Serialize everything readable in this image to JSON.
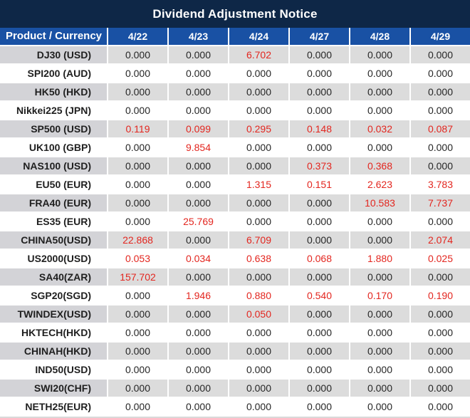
{
  "title": "Dividend Adjustment Notice",
  "colors": {
    "title_bg": "#0e2747",
    "header_bg": "#1951a4",
    "stripe_bg": "#dcdcdc",
    "stripe_product_bg": "#d3d3d7",
    "red": "#e3261f"
  },
  "table": {
    "product_header": "Product / Currency",
    "date_headers": [
      "4/22",
      "4/23",
      "4/24",
      "4/27",
      "4/28",
      "4/29"
    ],
    "rows": [
      {
        "product": "DJ30 (USD)",
        "values": [
          "0.000",
          "0.000",
          "6.702",
          "0.000",
          "0.000",
          "0.000"
        ],
        "red": [
          false,
          false,
          true,
          false,
          false,
          false
        ]
      },
      {
        "product": "SPI200 (AUD)",
        "values": [
          "0.000",
          "0.000",
          "0.000",
          "0.000",
          "0.000",
          "0.000"
        ],
        "red": [
          false,
          false,
          false,
          false,
          false,
          false
        ]
      },
      {
        "product": "HK50 (HKD)",
        "values": [
          "0.000",
          "0.000",
          "0.000",
          "0.000",
          "0.000",
          "0.000"
        ],
        "red": [
          false,
          false,
          false,
          false,
          false,
          false
        ]
      },
      {
        "product": "Nikkei225 (JPN)",
        "values": [
          "0.000",
          "0.000",
          "0.000",
          "0.000",
          "0.000",
          "0.000"
        ],
        "red": [
          false,
          false,
          false,
          false,
          false,
          false
        ]
      },
      {
        "product": "SP500 (USD)",
        "values": [
          "0.119",
          "0.099",
          "0.295",
          "0.148",
          "0.032",
          "0.087"
        ],
        "red": [
          true,
          true,
          true,
          true,
          true,
          true
        ]
      },
      {
        "product": "UK100 (GBP)",
        "values": [
          "0.000",
          "9.854",
          "0.000",
          "0.000",
          "0.000",
          "0.000"
        ],
        "red": [
          false,
          true,
          false,
          false,
          false,
          false
        ]
      },
      {
        "product": "NAS100 (USD)",
        "values": [
          "0.000",
          "0.000",
          "0.000",
          "0.373",
          "0.368",
          "0.000"
        ],
        "red": [
          false,
          false,
          false,
          true,
          true,
          false
        ]
      },
      {
        "product": "EU50 (EUR)",
        "values": [
          "0.000",
          "0.000",
          "1.315",
          "0.151",
          "2.623",
          "3.783"
        ],
        "red": [
          false,
          false,
          true,
          true,
          true,
          true
        ]
      },
      {
        "product": "FRA40 (EUR)",
        "values": [
          "0.000",
          "0.000",
          "0.000",
          "0.000",
          "10.583",
          "7.737"
        ],
        "red": [
          false,
          false,
          false,
          false,
          true,
          true
        ]
      },
      {
        "product": "ES35 (EUR)",
        "values": [
          "0.000",
          "25.769",
          "0.000",
          "0.000",
          "0.000",
          "0.000"
        ],
        "red": [
          false,
          true,
          false,
          false,
          false,
          false
        ]
      },
      {
        "product": "CHINA50(USD)",
        "values": [
          "22.868",
          "0.000",
          "6.709",
          "0.000",
          "0.000",
          "2.074"
        ],
        "red": [
          true,
          false,
          true,
          false,
          false,
          true
        ]
      },
      {
        "product": "US2000(USD)",
        "values": [
          "0.053",
          "0.034",
          "0.638",
          "0.068",
          "1.880",
          "0.025"
        ],
        "red": [
          true,
          true,
          true,
          true,
          true,
          true
        ]
      },
      {
        "product": "SA40(ZAR)",
        "values": [
          "157.702",
          "0.000",
          "0.000",
          "0.000",
          "0.000",
          "0.000"
        ],
        "red": [
          true,
          false,
          false,
          false,
          false,
          false
        ]
      },
      {
        "product": "SGP20(SGD)",
        "values": [
          "0.000",
          "1.946",
          "0.880",
          "0.540",
          "0.170",
          "0.190"
        ],
        "red": [
          false,
          true,
          true,
          true,
          true,
          true
        ]
      },
      {
        "product": "TWINDEX(USD)",
        "values": [
          "0.000",
          "0.000",
          "0.050",
          "0.000",
          "0.000",
          "0.000"
        ],
        "red": [
          false,
          false,
          true,
          false,
          false,
          false
        ]
      },
      {
        "product": "HKTECH(HKD)",
        "values": [
          "0.000",
          "0.000",
          "0.000",
          "0.000",
          "0.000",
          "0.000"
        ],
        "red": [
          false,
          false,
          false,
          false,
          false,
          false
        ]
      },
      {
        "product": "CHINAH(HKD)",
        "values": [
          "0.000",
          "0.000",
          "0.000",
          "0.000",
          "0.000",
          "0.000"
        ],
        "red": [
          false,
          false,
          false,
          false,
          false,
          false
        ]
      },
      {
        "product": "IND50(USD)",
        "values": [
          "0.000",
          "0.000",
          "0.000",
          "0.000",
          "0.000",
          "0.000"
        ],
        "red": [
          false,
          false,
          false,
          false,
          false,
          false
        ]
      },
      {
        "product": "SWI20(CHF)",
        "values": [
          "0.000",
          "0.000",
          "0.000",
          "0.000",
          "0.000",
          "0.000"
        ],
        "red": [
          false,
          false,
          false,
          false,
          false,
          false
        ]
      },
      {
        "product": "NETH25(EUR)",
        "values": [
          "0.000",
          "0.000",
          "0.000",
          "0.000",
          "0.000",
          "0.000"
        ],
        "red": [
          false,
          false,
          false,
          false,
          false,
          false
        ]
      }
    ]
  }
}
